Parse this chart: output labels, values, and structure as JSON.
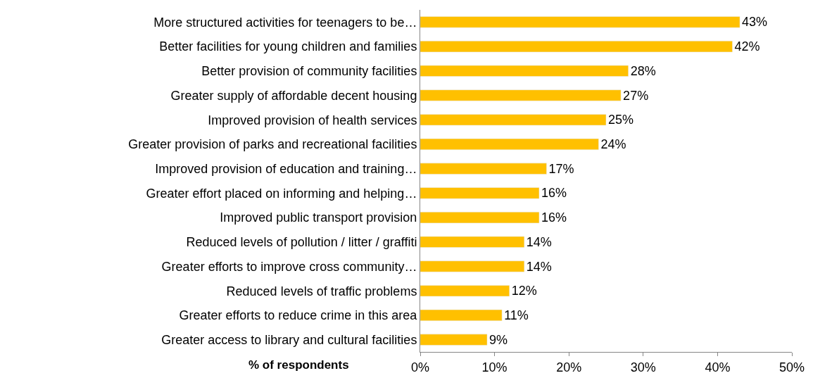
{
  "chart_data": {
    "type": "bar",
    "orientation": "horizontal",
    "xlabel": "% of respondents",
    "categories": [
      "More structured activities for teenagers to be…",
      "Better facilities for young children and families",
      "Better provision of community facilities",
      "Greater supply of affordable decent housing",
      "Improved provision of health services",
      "Greater provision of parks and recreational facilities",
      "Improved provision of education and training…",
      "Greater effort placed on informing and helping…",
      "Improved public transport provision",
      "Reduced levels of pollution / litter / graffiti",
      "Greater efforts to improve cross community…",
      "Reduced levels of traffic problems",
      "Greater efforts to reduce crime in this area",
      "Greater access to library and cultural facilities"
    ],
    "values": [
      43,
      42,
      28,
      27,
      25,
      24,
      17,
      16,
      16,
      14,
      14,
      12,
      11,
      9
    ],
    "value_labels": [
      "43%",
      "42%",
      "28%",
      "27%",
      "25%",
      "24%",
      "17%",
      "16%",
      "16%",
      "14%",
      "14%",
      "12%",
      "11%",
      "9%"
    ],
    "color": "#ffc000",
    "xlim": [
      0,
      50
    ],
    "xticks": [
      {
        "value": 0,
        "label": "0%"
      },
      {
        "value": 10,
        "label": "10%"
      },
      {
        "value": 20,
        "label": "20%"
      },
      {
        "value": 30,
        "label": "30%"
      },
      {
        "value": 40,
        "label": "40%"
      },
      {
        "value": 50,
        "label": "50%"
      }
    ],
    "legend": false
  }
}
